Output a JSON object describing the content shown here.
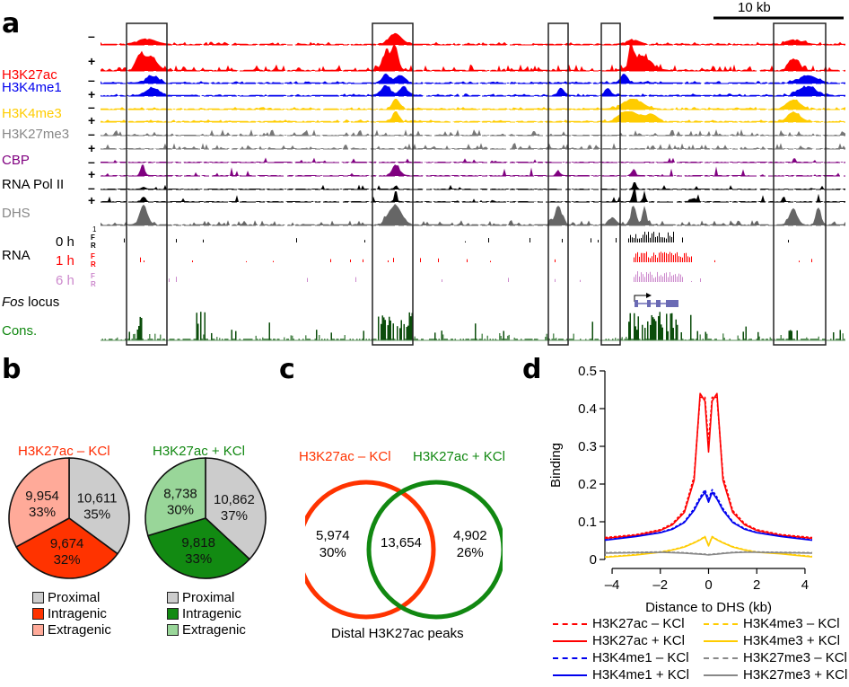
{
  "panels": {
    "a": {
      "letter": "a",
      "scale_bar_label": "10 kb",
      "tracks": [
        {
          "name": "H3K27ac",
          "color": "#ff0000",
          "signs": [
            "–",
            "+"
          ]
        },
        {
          "name": "H3K4me1",
          "color": "#0000ee",
          "signs": [
            "–",
            "+"
          ]
        },
        {
          "name": "H3K4me3",
          "color": "#ffcc00",
          "signs": [
            "–",
            "+"
          ]
        },
        {
          "name": "H3K27me3",
          "color": "#777777",
          "signs": [
            "–",
            "+"
          ]
        },
        {
          "name": "CBP",
          "color": "#800080",
          "signs": [
            "–",
            "+"
          ]
        },
        {
          "name": "RNA Pol II",
          "color": "#000000",
          "signs": [
            "–",
            "+"
          ]
        },
        {
          "name": "DHS",
          "color": "#777777",
          "signs": []
        }
      ],
      "rna": {
        "label": "RNA",
        "scale": "1",
        "timepoints": [
          {
            "label": "0 h",
            "color": "#000000",
            "strands": [
              "F",
              "R"
            ]
          },
          {
            "label": "1 h",
            "color": "#ff0000",
            "strands": [
              "F",
              "R"
            ]
          },
          {
            "label": "6 h",
            "color": "#cc88cc",
            "strands": [
              "F",
              "R"
            ]
          }
        ]
      },
      "locus_label_italic": "Fos",
      "locus_label_rest": " locus",
      "conservation_label": "Cons.",
      "conservation_color": "#0b5a0b",
      "highlight_boxes": 5
    },
    "b": {
      "letter": "b",
      "pies": [
        {
          "title": "H3K27ac – KCl",
          "title_color": "#ff2a00",
          "slices": [
            {
              "category": "Proximal",
              "count": "10,611",
              "percent": "35%",
              "value": 10611,
              "color": "#cccccc"
            },
            {
              "category": "Intragenic",
              "count": "9,674",
              "percent": "32%",
              "value": 9674,
              "color": "#ff3300"
            },
            {
              "category": "Extragenic",
              "count": "9,954",
              "percent": "33%",
              "value": 9954,
              "color": "#ffaa99"
            }
          ]
        },
        {
          "title": "H3K27ac + KCl",
          "title_color": "#118811",
          "slices": [
            {
              "category": "Proximal",
              "count": "10,862",
              "percent": "37%",
              "value": 10862,
              "color": "#cccccc"
            },
            {
              "category": "Intragenic",
              "count": "9,818",
              "percent": "33%",
              "value": 9818,
              "color": "#128a12"
            },
            {
              "category": "Extragenic",
              "count": "8,738",
              "percent": "30%",
              "value": 8738,
              "color": "#99d699"
            }
          ]
        }
      ]
    },
    "c": {
      "letter": "c",
      "set_a_label": "H3K27ac – KCl",
      "set_a_color": "#ff3300",
      "set_b_label": "H3K27ac + KCl",
      "set_b_color": "#118811",
      "only_a_count": "5,974",
      "only_a_percent": "30%",
      "both_count": "13,654",
      "only_b_count": "4,902",
      "only_b_percent": "26%",
      "caption": "Distal H3K27ac peaks"
    },
    "d": {
      "letter": "d"
    }
  },
  "chart_data": [
    {
      "type": "pie",
      "title": "H3K27ac – KCl",
      "categories": [
        "Proximal",
        "Intragenic",
        "Extragenic"
      ],
      "values": [
        10611,
        9674,
        9954
      ],
      "percents": [
        35,
        32,
        33
      ]
    },
    {
      "type": "pie",
      "title": "H3K27ac + KCl",
      "categories": [
        "Proximal",
        "Intragenic",
        "Extragenic"
      ],
      "values": [
        10862,
        9818,
        8738
      ],
      "percents": [
        37,
        33,
        30
      ]
    },
    {
      "type": "line",
      "title": "",
      "xlabel": "Distance to DHS (kb)",
      "ylabel": "Binding",
      "xlim": [
        -4.3,
        4.3
      ],
      "ylim": [
        0,
        0.5
      ],
      "xticks": [
        "–4",
        "–2",
        "0",
        "2",
        "4"
      ],
      "xtick_values": [
        -4,
        -2,
        0,
        2,
        4
      ],
      "yticks": [
        "0",
        "0.1",
        "0.2",
        "0.3",
        "0.4",
        "0.5"
      ],
      "ytick_values": [
        0,
        0.1,
        0.2,
        0.3,
        0.4,
        0.5
      ],
      "legend_position": "bottom",
      "x": [
        -4.3,
        -3,
        -2,
        -1.5,
        -1,
        -0.6,
        -0.35,
        -0.15,
        0,
        0.15,
        0.35,
        0.6,
        1,
        1.5,
        2,
        3,
        4.3
      ],
      "series": [
        {
          "name": "H3K27ac – KCl",
          "color": "#ff0000",
          "dash": true,
          "values": [
            0.058,
            0.066,
            0.079,
            0.095,
            0.13,
            0.22,
            0.43,
            0.43,
            0.31,
            0.43,
            0.43,
            0.22,
            0.13,
            0.095,
            0.079,
            0.066,
            0.058
          ]
        },
        {
          "name": "H3K27ac + KCl",
          "color": "#ff0000",
          "dash": false,
          "values": [
            0.056,
            0.064,
            0.077,
            0.092,
            0.125,
            0.21,
            0.44,
            0.42,
            0.285,
            0.42,
            0.44,
            0.21,
            0.125,
            0.092,
            0.077,
            0.064,
            0.056
          ]
        },
        {
          "name": "H3K4me1 – KCl",
          "color": "#0000ee",
          "dash": true,
          "values": [
            0.052,
            0.062,
            0.072,
            0.082,
            0.1,
            0.135,
            0.165,
            0.185,
            0.16,
            0.185,
            0.165,
            0.135,
            0.1,
            0.082,
            0.072,
            0.062,
            0.052
          ]
        },
        {
          "name": "H3K4me1 + KCl",
          "color": "#0000ee",
          "dash": false,
          "values": [
            0.051,
            0.061,
            0.071,
            0.08,
            0.098,
            0.13,
            0.16,
            0.178,
            0.152,
            0.178,
            0.16,
            0.13,
            0.098,
            0.08,
            0.071,
            0.061,
            0.051
          ]
        },
        {
          "name": "H3K4me3 – KCl",
          "color": "#ffcc00",
          "dash": true,
          "values": [
            0.007,
            0.013,
            0.02,
            0.026,
            0.034,
            0.045,
            0.053,
            0.061,
            0.038,
            0.061,
            0.053,
            0.045,
            0.034,
            0.026,
            0.02,
            0.016,
            0.008
          ]
        },
        {
          "name": "H3K4me3 + KCl",
          "color": "#ffcc00",
          "dash": false,
          "values": [
            0.006,
            0.012,
            0.019,
            0.025,
            0.033,
            0.044,
            0.052,
            0.06,
            0.036,
            0.06,
            0.052,
            0.044,
            0.033,
            0.025,
            0.019,
            0.015,
            0.007
          ]
        },
        {
          "name": "H3K27me3 – KCl",
          "color": "#888888",
          "dash": true,
          "values": [
            0.018,
            0.019,
            0.02,
            0.019,
            0.018,
            0.016,
            0.015,
            0.014,
            0.013,
            0.014,
            0.015,
            0.017,
            0.019,
            0.02,
            0.02,
            0.019,
            0.018
          ]
        },
        {
          "name": "H3K27me3 + KCl",
          "color": "#888888",
          "dash": false,
          "values": [
            0.017,
            0.018,
            0.019,
            0.018,
            0.017,
            0.015,
            0.014,
            0.013,
            0.012,
            0.013,
            0.014,
            0.016,
            0.018,
            0.019,
            0.019,
            0.018,
            0.017
          ]
        }
      ]
    },
    {
      "type": "venn",
      "title": "Distal H3K27ac peaks",
      "sets": [
        "H3K27ac – KCl",
        "H3K27ac + KCl"
      ],
      "only_a": 5974,
      "only_a_percent": 30,
      "intersection": 13654,
      "only_b": 4902,
      "only_b_percent": 26
    }
  ]
}
